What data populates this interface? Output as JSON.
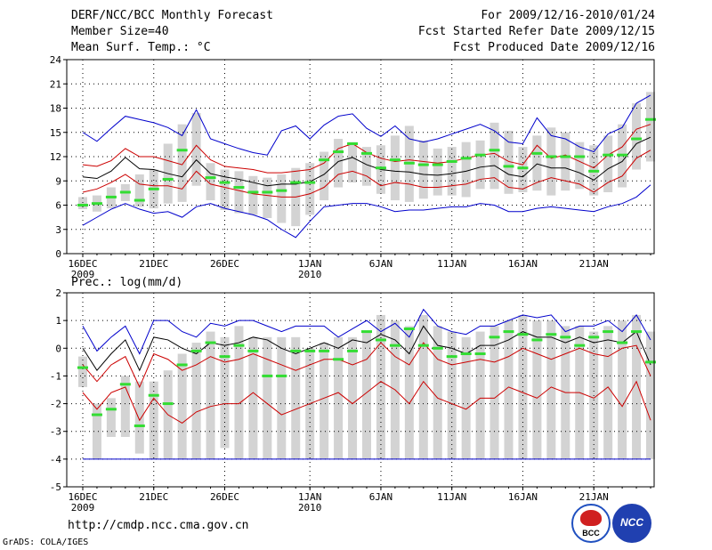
{
  "header": {
    "title": "DERF/NCC/BCC Monthly Forecast",
    "member": "Member Size=40",
    "variable": "Mean Surf. Temp.: °C",
    "period": "For 2009/12/16-2010/01/24",
    "refer": "Fcst Started Refer Date 2009/12/15",
    "produced": "Fcst Produced Date 2009/12/16"
  },
  "footer": {
    "url": "http://cmdp.ncc.cma.gov.cn",
    "credit": "GrADS: COLA/IGES"
  },
  "logos": {
    "bcc": "BCC",
    "ncc": "NCC"
  },
  "colors": {
    "max_min": "#0000cc",
    "spread": "#cc0000",
    "mean": "#000000",
    "box": "#d3d3d3",
    "median": "#33dd33",
    "grid": "#000000"
  },
  "chart_data": [
    {
      "type": "box-ensemble",
      "title": "Mean Surf. Temp.: °C",
      "ylim": [
        0,
        24
      ],
      "yticks": [
        0,
        3,
        6,
        9,
        12,
        15,
        18,
        21,
        24
      ],
      "xlabels": [
        {
          "day": 1,
          "label": "16DEC",
          "sub": "2009"
        },
        {
          "day": 6,
          "label": "21DEC",
          "sub": ""
        },
        {
          "day": 11,
          "label": "26DEC",
          "sub": ""
        },
        {
          "day": 17,
          "label": "1JAN",
          "sub": "2010"
        },
        {
          "day": 22,
          "label": "6JAN",
          "sub": ""
        },
        {
          "day": 27,
          "label": "11JAN",
          "sub": ""
        },
        {
          "day": 32,
          "label": "16JAN",
          "sub": ""
        },
        {
          "day": 37,
          "label": "21JAN",
          "sub": ""
        }
      ],
      "series": {
        "max": [
          15.0,
          13.9,
          15.5,
          17.0,
          16.6,
          16.2,
          15.6,
          14.6,
          17.8,
          14.2,
          13.6,
          13.0,
          12.5,
          12.2,
          15.2,
          15.8,
          14.2,
          15.9,
          17.0,
          17.3,
          15.5,
          14.5,
          15.8,
          14.2,
          13.8,
          14.2,
          14.8,
          15.4,
          16.0,
          15.2,
          13.8,
          13.6,
          16.8,
          14.6,
          14.2,
          13.2,
          12.6,
          14.8,
          15.6,
          18.6,
          19.6
        ],
        "min": [
          3.5,
          4.5,
          5.5,
          6.2,
          5.5,
          5.0,
          5.2,
          4.5,
          5.8,
          6.2,
          5.6,
          5.2,
          4.8,
          4.2,
          3.0,
          2.0,
          4.0,
          5.8,
          6.0,
          6.2,
          6.2,
          5.8,
          5.2,
          5.4,
          5.4,
          5.6,
          5.8,
          5.8,
          6.2,
          6.0,
          5.2,
          5.2,
          5.6,
          5.8,
          5.6,
          5.4,
          5.2,
          5.8,
          6.2,
          7.0,
          8.5
        ],
        "upper": [
          11.0,
          10.8,
          11.5,
          13.0,
          12.0,
          12.0,
          11.5,
          11.0,
          13.4,
          11.6,
          10.8,
          10.6,
          10.4,
          10.0,
          10.0,
          10.2,
          10.4,
          11.2,
          13.0,
          13.6,
          12.5,
          11.8,
          11.4,
          11.6,
          11.4,
          11.2,
          11.4,
          11.8,
          12.2,
          12.4,
          11.4,
          11.0,
          13.4,
          11.8,
          12.2,
          11.4,
          10.6,
          12.2,
          13.2,
          15.4,
          16.0
        ],
        "lower": [
          7.6,
          8.0,
          8.8,
          9.8,
          8.6,
          8.4,
          8.4,
          8.0,
          10.2,
          8.6,
          8.2,
          7.8,
          7.4,
          7.2,
          7.0,
          7.0,
          7.4,
          8.2,
          9.8,
          10.2,
          9.6,
          8.4,
          8.8,
          8.6,
          8.2,
          8.2,
          8.4,
          8.6,
          9.2,
          9.4,
          8.2,
          8.0,
          8.8,
          9.4,
          9.0,
          8.6,
          7.6,
          8.8,
          9.6,
          11.8,
          12.8
        ],
        "mean": [
          9.5,
          9.3,
          10.2,
          11.9,
          10.5,
          10.4,
          9.9,
          9.5,
          11.6,
          9.9,
          9.5,
          9.2,
          8.8,
          8.4,
          8.6,
          8.6,
          8.9,
          9.8,
          11.4,
          11.9,
          11.0,
          10.4,
          10.2,
          10.1,
          9.8,
          9.7,
          9.9,
          10.2,
          10.7,
          10.9,
          9.8,
          9.5,
          11.1,
          10.6,
          10.6,
          10.0,
          9.1,
          10.5,
          11.4,
          13.6,
          14.4
        ],
        "box_hi": [
          7.0,
          7.2,
          8.2,
          8.6,
          9.8,
          10.4,
          13.6,
          16.0,
          17.4,
          11.2,
          10.4,
          10.2,
          9.6,
          9.4,
          9.8,
          10.6,
          11.2,
          12.6,
          14.2,
          13.8,
          13.2,
          13.4,
          14.6,
          15.8,
          14.0,
          13.0,
          13.2,
          13.8,
          14.0,
          16.2,
          15.2,
          13.2,
          14.6,
          15.6,
          15.0,
          13.8,
          13.4,
          14.6,
          16.0,
          18.6,
          20.0
        ],
        "box_lo": [
          5.5,
          5.2,
          5.6,
          6.5,
          5.8,
          5.6,
          6.2,
          6.4,
          8.4,
          6.6,
          5.4,
          5.0,
          4.8,
          4.4,
          3.8,
          3.4,
          4.8,
          6.6,
          8.2,
          8.8,
          8.4,
          7.4,
          6.6,
          6.4,
          6.8,
          7.2,
          7.2,
          7.0,
          8.0,
          8.0,
          7.4,
          7.6,
          7.8,
          7.2,
          7.8,
          8.0,
          7.2,
          7.6,
          8.2,
          10.4,
          11.4
        ],
        "median": [
          6.0,
          6.2,
          7.0,
          7.6,
          6.6,
          8.0,
          9.2,
          12.8,
          null,
          9.4,
          8.8,
          8.2,
          7.6,
          7.6,
          7.8,
          8.8,
          8.8,
          11.6,
          12.6,
          13.6,
          12.4,
          10.6,
          11.6,
          11.2,
          11.0,
          11.0,
          11.4,
          11.8,
          12.2,
          12.8,
          10.8,
          10.6,
          12.4,
          12.0,
          12.0,
          12.0,
          10.2,
          12.2,
          12.2,
          14.2,
          16.6
        ]
      }
    },
    {
      "type": "box-ensemble",
      "title": "Prec.: log(mm/d)",
      "ylim": [
        -5,
        2
      ],
      "yticks": [
        -5,
        -4,
        -3,
        -2,
        -1,
        0,
        1,
        2
      ],
      "xlabels": [
        {
          "day": 1,
          "label": "16DEC",
          "sub": "2009"
        },
        {
          "day": 6,
          "label": "21DEC",
          "sub": ""
        },
        {
          "day": 11,
          "label": "26DEC",
          "sub": ""
        },
        {
          "day": 17,
          "label": "1JAN",
          "sub": "2010"
        },
        {
          "day": 22,
          "label": "6JAN",
          "sub": ""
        },
        {
          "day": 27,
          "label": "11JAN",
          "sub": ""
        },
        {
          "day": 32,
          "label": "16JAN",
          "sub": ""
        },
        {
          "day": 37,
          "label": "21JAN",
          "sub": ""
        }
      ],
      "series": {
        "max": [
          0.8,
          -0.1,
          0.4,
          0.8,
          -0.2,
          1.0,
          1.0,
          0.6,
          0.4,
          0.9,
          0.8,
          1.0,
          1.0,
          0.8,
          0.6,
          0.8,
          0.8,
          0.8,
          0.4,
          0.7,
          1.0,
          0.6,
          0.9,
          0.4,
          1.4,
          0.8,
          0.6,
          0.5,
          0.8,
          0.8,
          1.0,
          1.2,
          1.1,
          1.2,
          0.6,
          0.8,
          0.8,
          1.0,
          0.6,
          1.2,
          0.3
        ],
        "min": [
          -4.0,
          -4.0,
          -4.0,
          -4.0,
          -4.0,
          -4.0,
          -4.0,
          -4.0,
          -4.0,
          -4.0,
          -4.0,
          -4.0,
          -4.0,
          -4.0,
          -4.0,
          -4.0,
          -4.0,
          -4.0,
          -4.0,
          -4.0,
          -4.0,
          -4.0,
          -4.0,
          -4.0,
          -4.0,
          -4.0,
          -4.0,
          -4.0,
          -4.0,
          -4.0,
          -4.0,
          -4.0,
          -4.0,
          -4.0,
          -4.0,
          -4.0,
          -4.0,
          -4.0,
          -4.0,
          -4.0,
          -4.0
        ],
        "upper": [
          -0.6,
          -1.2,
          -0.6,
          -0.3,
          -1.4,
          -0.2,
          -0.4,
          -0.8,
          -0.6,
          -0.3,
          -0.5,
          -0.4,
          -0.2,
          -0.4,
          -0.6,
          -0.8,
          -0.6,
          -0.4,
          -0.4,
          -0.6,
          -0.4,
          0.2,
          -0.3,
          -0.6,
          0.2,
          -0.4,
          -0.6,
          -0.5,
          -0.4,
          -0.5,
          -0.3,
          0.0,
          -0.2,
          -0.4,
          -0.2,
          0.0,
          -0.2,
          -0.3,
          0.0,
          0.1,
          -1.0
        ],
        "lower": [
          -1.6,
          -2.2,
          -1.6,
          -1.4,
          -2.6,
          -1.8,
          -2.4,
          -2.7,
          -2.3,
          -2.1,
          -2.0,
          -2.0,
          -1.6,
          -2.0,
          -2.4,
          -2.2,
          -2.0,
          -1.8,
          -1.6,
          -2.0,
          -1.6,
          -1.2,
          -1.5,
          -2.0,
          -1.2,
          -1.8,
          -2.0,
          -2.2,
          -1.8,
          -1.8,
          -1.4,
          -1.6,
          -1.8,
          -1.4,
          -1.6,
          -1.6,
          -1.8,
          -1.4,
          -2.1,
          -1.2,
          -2.6
        ],
        "mean": [
          0.0,
          -0.8,
          -0.2,
          0.3,
          -0.8,
          0.4,
          0.3,
          0.0,
          -0.2,
          0.2,
          0.1,
          0.2,
          0.4,
          0.3,
          0.0,
          -0.2,
          0.0,
          0.2,
          0.0,
          0.3,
          0.2,
          0.5,
          0.3,
          -0.2,
          0.8,
          0.1,
          0.0,
          -0.2,
          0.1,
          0.1,
          0.3,
          0.6,
          0.4,
          0.4,
          0.2,
          0.4,
          0.2,
          0.3,
          0.2,
          0.6,
          -0.6
        ],
        "box_hi": [
          -0.3,
          -2.0,
          -1.8,
          -1.0,
          -1.2,
          -1.2,
          -0.8,
          -0.2,
          0.2,
          0.6,
          0.4,
          0.8,
          0.4,
          0.4,
          0.4,
          0.4,
          0.0,
          0.2,
          0.4,
          0.4,
          0.6,
          1.2,
          1.0,
          0.8,
          1.2,
          0.8,
          0.6,
          0.4,
          0.6,
          0.8,
          1.0,
          1.2,
          1.0,
          1.0,
          0.8,
          0.8,
          0.6,
          0.8,
          1.0,
          1.2,
          0.6
        ],
        "box_lo": [
          -1.4,
          -4.0,
          -3.2,
          -3.2,
          -3.8,
          -4.0,
          -4.0,
          -4.0,
          -4.0,
          -4.0,
          -3.6,
          -4.0,
          -4.0,
          -4.0,
          -4.0,
          -4.0,
          -4.0,
          -4.0,
          -4.0,
          -4.0,
          -4.0,
          -4.0,
          -4.0,
          -4.0,
          -4.0,
          -4.0,
          -4.0,
          -4.0,
          -4.0,
          -4.0,
          -4.0,
          -4.0,
          -4.0,
          -4.0,
          -4.0,
          -4.0,
          -4.0,
          -4.0,
          -4.0,
          -4.0,
          -4.0
        ],
        "median": [
          -0.7,
          -2.4,
          -2.2,
          -1.3,
          -2.8,
          -1.7,
          -2.0,
          -0.6,
          -0.1,
          0.2,
          -0.3,
          0.1,
          -0.1,
          -1.0,
          -1.0,
          -0.1,
          -0.1,
          -0.1,
          -0.4,
          -0.1,
          0.6,
          0.3,
          0.1,
          0.7,
          0.1,
          0.0,
          -0.3,
          -0.2,
          -0.2,
          0.4,
          0.6,
          0.5,
          0.3,
          0.5,
          0.4,
          0.1,
          0.4,
          0.6,
          0.2,
          0.6,
          -0.5
        ]
      }
    }
  ]
}
